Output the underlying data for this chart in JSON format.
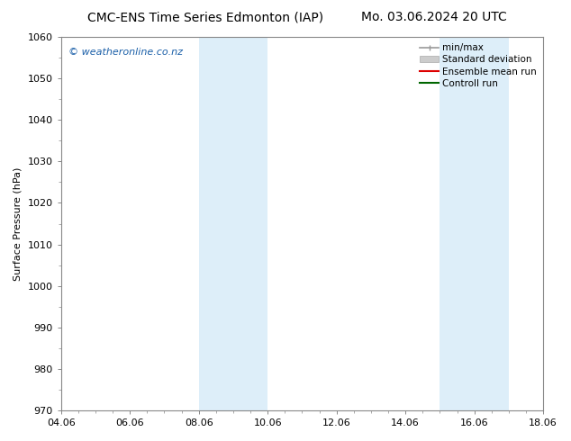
{
  "title_left": "CMC-ENS Time Series Edmonton (IAP)",
  "title_right": "Mo. 03.06.2024 20 UTC",
  "ylabel": "Surface Pressure (hPa)",
  "ylim": [
    970,
    1060
  ],
  "yticks": [
    970,
    980,
    990,
    1000,
    1010,
    1020,
    1030,
    1040,
    1050,
    1060
  ],
  "xlim_start": 4.06,
  "xlim_end": 18.06,
  "xtick_labels": [
    "04.06",
    "06.06",
    "08.06",
    "10.06",
    "12.06",
    "14.06",
    "16.06",
    "18.06"
  ],
  "xtick_positions": [
    4.06,
    6.06,
    8.06,
    10.06,
    12.06,
    14.06,
    16.06,
    18.06
  ],
  "shaded_bands": [
    {
      "x_start": 8.06,
      "x_end": 10.06
    },
    {
      "x_start": 15.06,
      "x_end": 17.06
    }
  ],
  "shaded_color": "#ddeef9",
  "watermark": "© weatheronline.co.nz",
  "watermark_color": "#1a5fa8",
  "legend_entries": [
    {
      "label": "min/max",
      "color": "#999999",
      "type": "minmax"
    },
    {
      "label": "Standard deviation",
      "color": "#cccccc",
      "type": "band"
    },
    {
      "label": "Ensemble mean run",
      "color": "#dd0000",
      "type": "line"
    },
    {
      "label": "Controll run",
      "color": "#006600",
      "type": "line"
    }
  ],
  "background_color": "#ffffff",
  "spine_color": "#888888",
  "title_fontsize": 10,
  "ylabel_fontsize": 8,
  "tick_fontsize": 8,
  "watermark_fontsize": 8,
  "legend_fontsize": 7.5
}
